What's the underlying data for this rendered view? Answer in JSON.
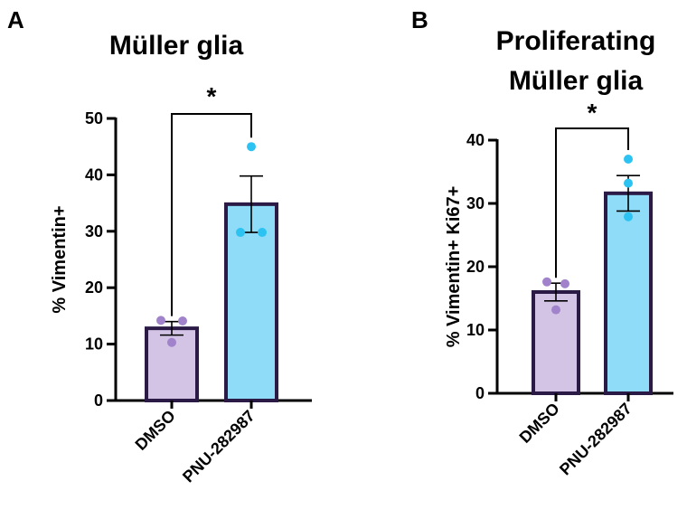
{
  "figure": {
    "panels": [
      {
        "letter": "A",
        "title_lines": [
          "Müller glia"
        ]
      },
      {
        "letter": "B",
        "title_lines": [
          "Proliferating",
          "Müller glia"
        ]
      }
    ]
  },
  "chart_data": [
    {
      "type": "bar",
      "title": "Müller glia",
      "xlabel": "",
      "ylabel": "% Vimentin+",
      "categories": [
        "DMSO",
        "PNU-282987"
      ],
      "values": [
        12.8,
        34.8
      ],
      "error_sem": [
        1.2,
        5.0
      ],
      "points": [
        [
          14.2,
          14.1,
          10.3
        ],
        [
          45.0,
          29.8,
          29.8
        ]
      ],
      "ylim": [
        0,
        50
      ],
      "yticks": [
        0,
        10,
        20,
        30,
        40,
        50
      ],
      "significance": "*",
      "bar_fill": [
        "#d3c4e6",
        "#8edcf8"
      ],
      "bar_stroke": "#2a1a45",
      "point_colors": [
        "#a183cb",
        "#2cc3f2"
      ],
      "grid": false,
      "legend": "none"
    },
    {
      "type": "bar",
      "title": "Proliferating Müller glia",
      "xlabel": "",
      "ylabel": "% Vimentin+ Ki67+",
      "categories": [
        "DMSO",
        "PNU-282987"
      ],
      "values": [
        16.0,
        31.6
      ],
      "error_sem": [
        1.4,
        2.8
      ],
      "points": [
        [
          17.6,
          17.3,
          13.2
        ],
        [
          37.0,
          33.2,
          27.9
        ]
      ],
      "ylim": [
        0,
        40
      ],
      "yticks": [
        0,
        10,
        20,
        30,
        40
      ],
      "significance": "*",
      "bar_fill": [
        "#d3c4e6",
        "#8edcf8"
      ],
      "bar_stroke": "#2a1a45",
      "point_colors": [
        "#a183cb",
        "#2cc3f2"
      ],
      "grid": false,
      "legend": "none"
    }
  ]
}
